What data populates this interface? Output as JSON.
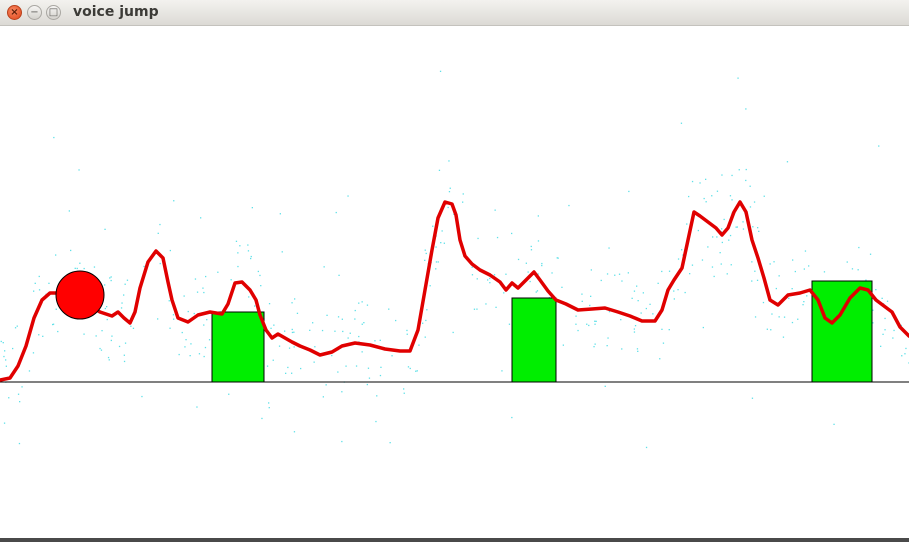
{
  "window": {
    "title": "voice jump",
    "close_glyph": "×",
    "minimize_glyph": "−",
    "maximize_glyph": "□"
  },
  "colors": {
    "pitch_line": "#e00000",
    "noise_dots": "#5fe0e8",
    "ground": "#000000",
    "obstacle": "#00ee00",
    "player": "#ff0000"
  },
  "game": {
    "obstacles": 3,
    "player": "ball"
  }
}
